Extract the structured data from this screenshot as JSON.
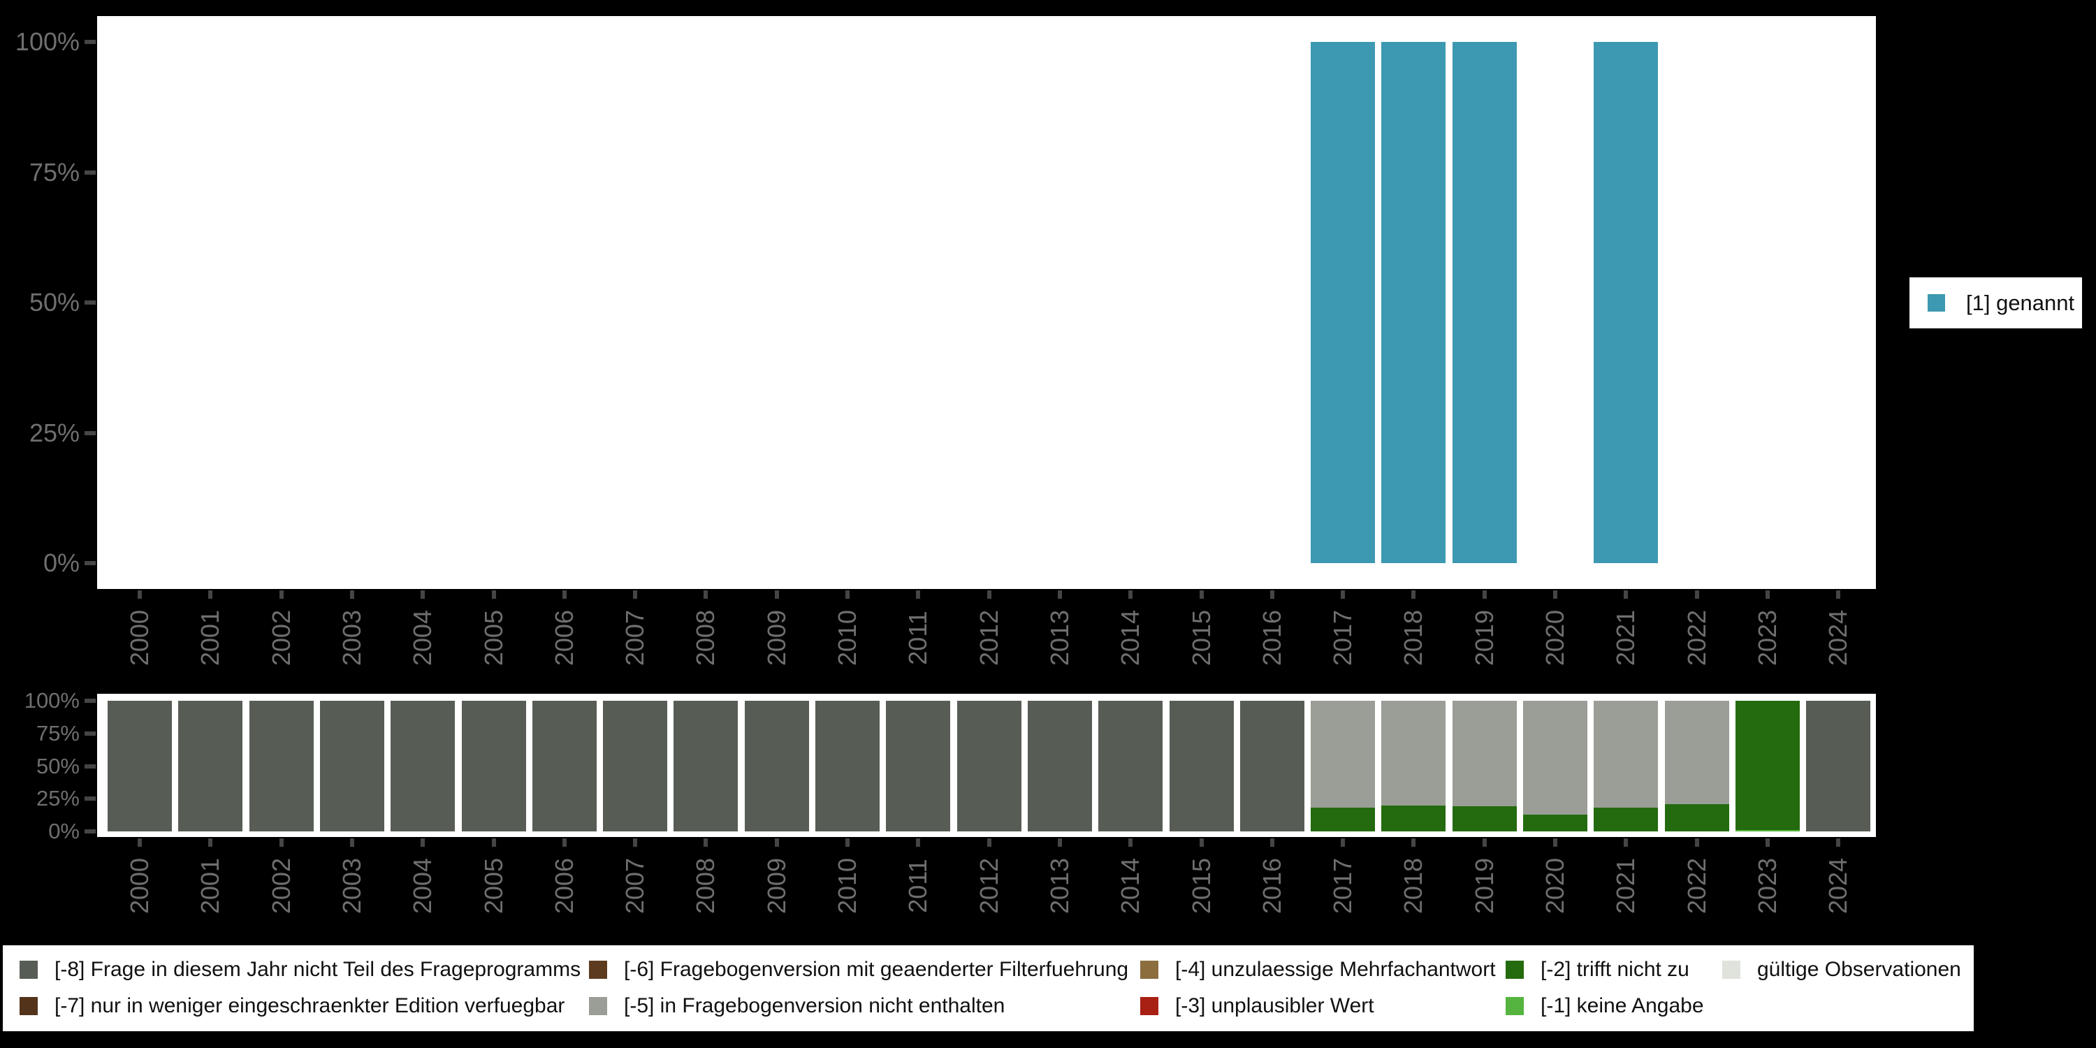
{
  "background": "#000000",
  "palette": {
    "genannt": "#3D99B1",
    "m1": "#54B43F",
    "m2": "#236B0E",
    "m3": "#A82014",
    "m4": "#8B6D3E",
    "m5": "#9A9E96",
    "m6": "#5D3B1E",
    "m7": "#53341B",
    "m8": "#575D55",
    "valid": "#DFE3DC"
  },
  "axis": {
    "text_color": "#6F6F6F",
    "tick_color": "#454545",
    "y_tick_labels": [
      "100%",
      "75%",
      "50%",
      "25%",
      "0%"
    ]
  },
  "top_legend": {
    "label": "[1] genannt",
    "color_key": "genannt"
  },
  "bottom_legend": {
    "items": [
      {
        "key": "m8",
        "label": "[-8] Frage in diesem Jahr nicht Teil des Frageprogramms"
      },
      {
        "key": "m7",
        "label": "[-7] nur in weniger eingeschraenkter Edition verfuegbar"
      },
      {
        "key": "m6",
        "label": "[-6] Fragebogenversion mit geaenderter Filterfuehrung"
      },
      {
        "key": "m5",
        "label": "[-5] in Fragebogenversion nicht enthalten"
      },
      {
        "key": "m4",
        "label": "[-4] unzulaessige Mehrfachantwort"
      },
      {
        "key": "m3",
        "label": "[-3] unplausibler Wert"
      },
      {
        "key": "m2",
        "label": "[-2] trifft nicht zu"
      },
      {
        "key": "m1",
        "label": "[-1] keine Angabe"
      },
      {
        "key": "valid",
        "label": "gültige Observationen"
      }
    ]
  },
  "chart_data": [
    {
      "type": "bar",
      "stacking": "percent",
      "title": "",
      "xlabel": "",
      "ylabel": "",
      "ylim": [
        0,
        100
      ],
      "grid": false,
      "legend_position": "right",
      "x": [
        "2000",
        "2001",
        "2002",
        "2003",
        "2004",
        "2005",
        "2006",
        "2007",
        "2008",
        "2009",
        "2010",
        "2011",
        "2012",
        "2013",
        "2014",
        "2015",
        "2016",
        "2017",
        "2018",
        "2019",
        "2020",
        "2021",
        "2022",
        "2023",
        "2024"
      ],
      "y_ticks": [
        "100%",
        "75%",
        "50%",
        "25%",
        "0%"
      ],
      "series": [
        {
          "name": "[1] genannt",
          "color_key": "genannt",
          "values": [
            0,
            0,
            0,
            0,
            0,
            0,
            0,
            0,
            0,
            0,
            0,
            0,
            0,
            0,
            0,
            0,
            0,
            100,
            100,
            100,
            0,
            100,
            0,
            0,
            0
          ]
        }
      ]
    },
    {
      "type": "bar",
      "stacking": "percent",
      "title": "",
      "xlabel": "",
      "ylabel": "",
      "ylim": [
        0,
        100
      ],
      "grid": false,
      "legend_position": "bottom",
      "x": [
        "2000",
        "2001",
        "2002",
        "2003",
        "2004",
        "2005",
        "2006",
        "2007",
        "2008",
        "2009",
        "2010",
        "2011",
        "2012",
        "2013",
        "2014",
        "2015",
        "2016",
        "2017",
        "2018",
        "2019",
        "2020",
        "2021",
        "2022",
        "2023",
        "2024"
      ],
      "y_ticks": [
        "100%",
        "75%",
        "50%",
        "25%",
        "0%"
      ],
      "series": [
        {
          "name": "[-1] keine Angabe",
          "color_key": "m1",
          "values": [
            0,
            0,
            0,
            0,
            0,
            0,
            0,
            0,
            0,
            0,
            0,
            0,
            0,
            0,
            0,
            0,
            0,
            0,
            0,
            0,
            0,
            0,
            0,
            1,
            0
          ]
        },
        {
          "name": "[-2] trifft nicht zu",
          "color_key": "m2",
          "values": [
            0,
            0,
            0,
            0,
            0,
            0,
            0,
            0,
            0,
            0,
            0,
            0,
            0,
            0,
            0,
            0,
            0,
            18,
            20,
            19,
            13,
            18,
            21,
            99,
            0
          ]
        },
        {
          "name": "[-5] in Fragebogenversion nicht enthalten",
          "color_key": "m5",
          "values": [
            0,
            0,
            0,
            0,
            0,
            0,
            0,
            0,
            0,
            0,
            0,
            0,
            0,
            0,
            0,
            0,
            0,
            82,
            80,
            81,
            87,
            82,
            79,
            0,
            0
          ]
        },
        {
          "name": "[-8] Frage in diesem Jahr nicht Teil des Frageprogramms",
          "color_key": "m8",
          "values": [
            100,
            100,
            100,
            100,
            100,
            100,
            100,
            100,
            100,
            100,
            100,
            100,
            100,
            100,
            100,
            100,
            100,
            0,
            0,
            0,
            0,
            0,
            0,
            0,
            100
          ]
        }
      ]
    }
  ]
}
